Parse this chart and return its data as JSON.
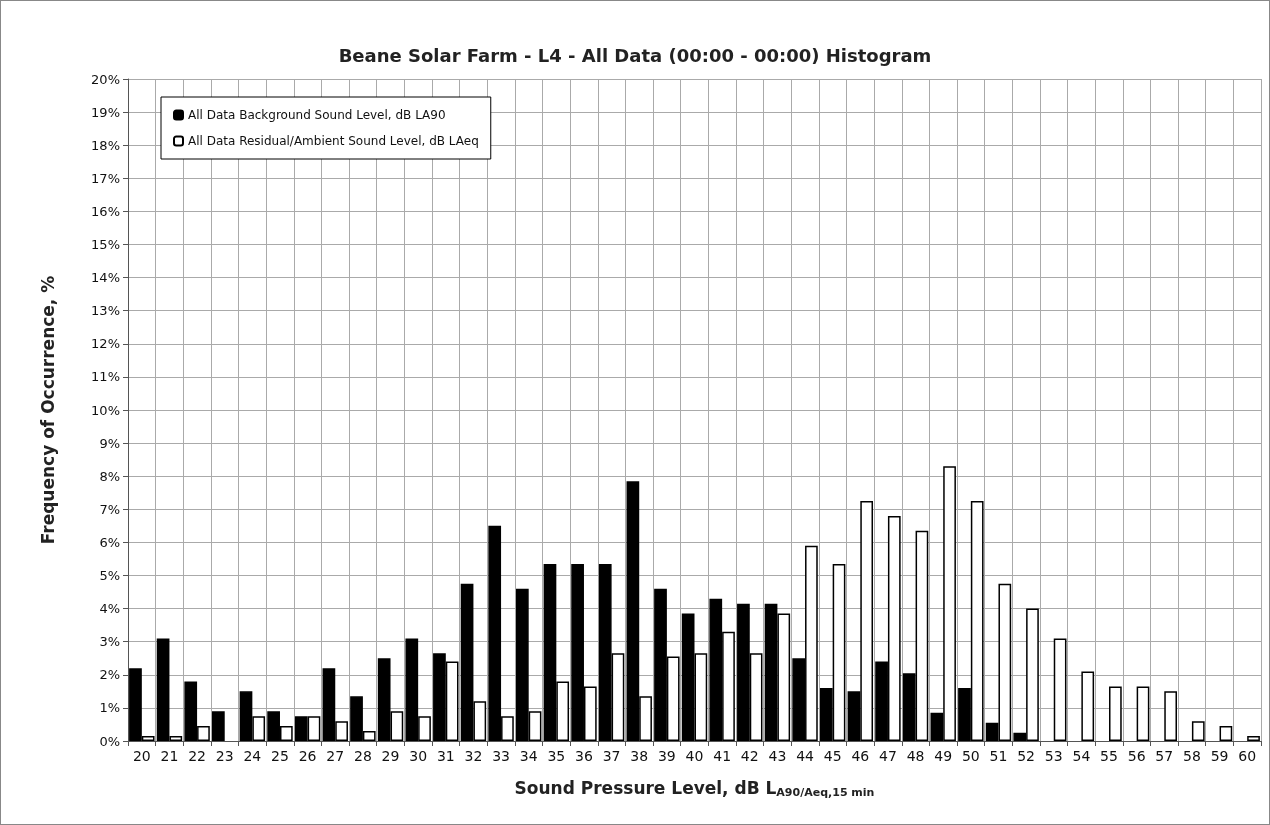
{
  "chart_data": {
    "type": "bar",
    "title": "Beane Solar Farm - L4 - All Data (00:00 - 00:00) Histogram",
    "xlabel": "Sound Pressure Level, dB L$_{A90/Aeq,15 min}$",
    "ylabel": "Frequency of Occurrence, %",
    "categories": [
      "20",
      "21",
      "22",
      "23",
      "24",
      "25",
      "26",
      "27",
      "28",
      "29",
      "30",
      "31",
      "32",
      "33",
      "34",
      "35",
      "36",
      "37",
      "38",
      "39",
      "40",
      "41",
      "42",
      "43",
      "44",
      "45",
      "46",
      "47",
      "48",
      "49",
      "50",
      "51",
      "52",
      "53",
      "54",
      "55",
      "56",
      "57",
      "58",
      "59",
      "60"
    ],
    "series": [
      {
        "name": "All Data Background Sound Level, dB LA90",
        "color": "#000000",
        "values": [
          2.2,
          3.1,
          1.8,
          0.9,
          1.5,
          0.9,
          0.75,
          2.2,
          1.35,
          2.5,
          3.1,
          2.65,
          4.75,
          6.5,
          4.6,
          5.35,
          5.35,
          5.35,
          7.85,
          4.6,
          3.85,
          4.3,
          4.15,
          4.15,
          2.5,
          1.6,
          1.5,
          2.4,
          2.05,
          0.85,
          1.6,
          0.55,
          0.25,
          0,
          0,
          0,
          0,
          0,
          0,
          0,
          0
        ]
      },
      {
        "name": "All Data Residual/Ambient Sound Level, dB LAeq",
        "color": "#ffffff",
        "values": [
          0.15,
          0.15,
          0.45,
          0,
          0.75,
          0.45,
          0.75,
          0.6,
          0.3,
          0.9,
          0.75,
          2.4,
          1.2,
          0.75,
          0.9,
          1.8,
          1.65,
          2.65,
          1.35,
          2.55,
          2.65,
          3.3,
          2.65,
          3.85,
          5.9,
          5.35,
          7.25,
          6.8,
          6.35,
          8.3,
          7.25,
          4.75,
          4.0,
          3.1,
          2.1,
          1.65,
          1.65,
          1.5,
          0.6,
          0.45,
          0.15
        ]
      }
    ],
    "ylim": [
      0,
      20
    ],
    "yticks": [
      {
        "value": 0,
        "label": "0%"
      },
      {
        "value": 1,
        "label": "1%"
      },
      {
        "value": 2,
        "label": "2%"
      },
      {
        "value": 3,
        "label": "3%"
      },
      {
        "value": 4,
        "label": "4%"
      },
      {
        "value": 5,
        "label": "5%"
      },
      {
        "value": 6,
        "label": "6%"
      },
      {
        "value": 7,
        "label": "7%"
      },
      {
        "value": 8,
        "label": "8%"
      },
      {
        "value": 9,
        "label": "9%"
      },
      {
        "value": 10,
        "label": "10%"
      },
      {
        "value": 11,
        "label": "11%"
      },
      {
        "value": 12,
        "label": "12%"
      },
      {
        "value": 13,
        "label": "13%"
      },
      {
        "value": 14,
        "label": "14%"
      },
      {
        "value": 15,
        "label": "15%"
      },
      {
        "value": 16,
        "label": "16%"
      },
      {
        "value": 17,
        "label": "17%"
      },
      {
        "value": 18,
        "label": "18%"
      },
      {
        "value": 19,
        "label": "19%"
      },
      {
        "value": 20,
        "label": "20%"
      }
    ],
    "grid": true,
    "legend": "top left"
  }
}
